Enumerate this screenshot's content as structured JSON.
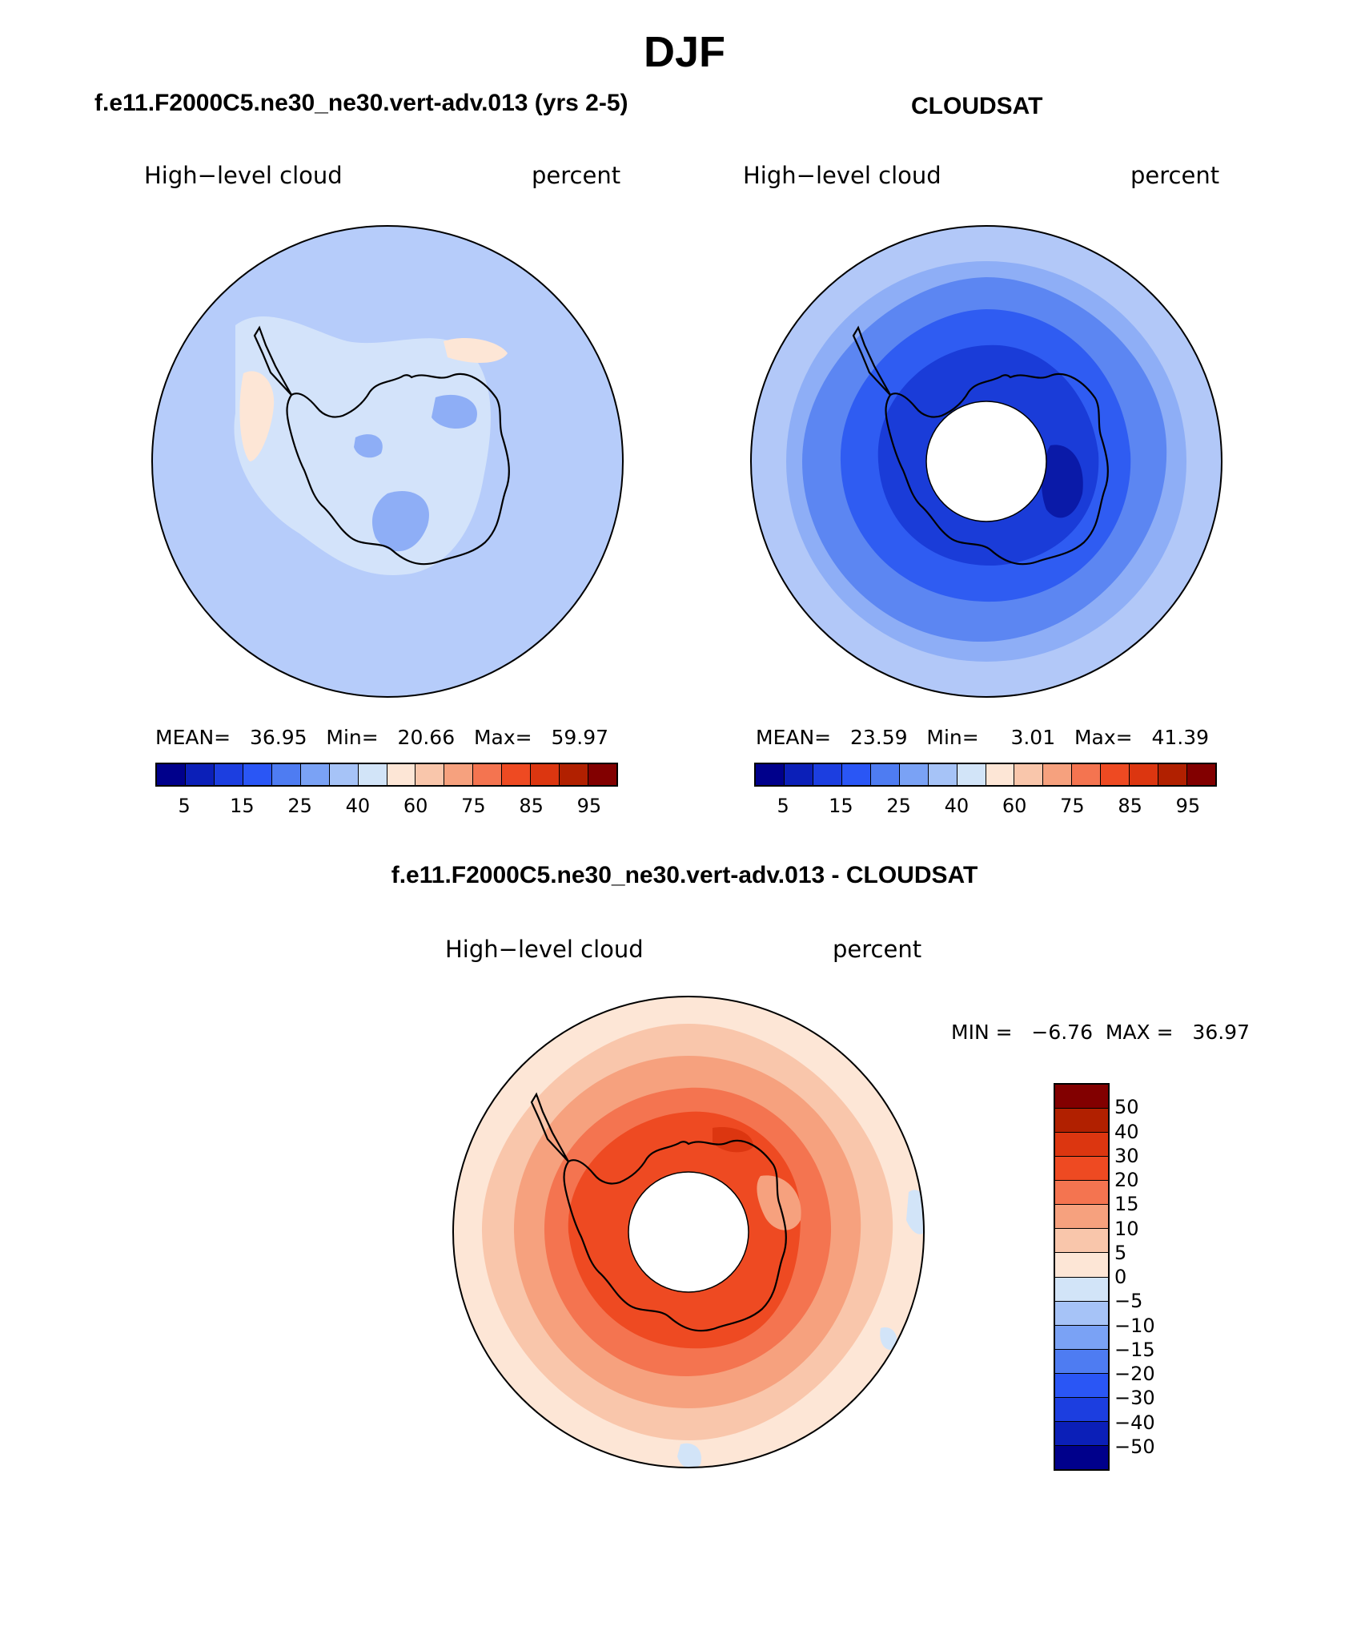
{
  "season": "DJF",
  "panels": {
    "model": {
      "title": "f.e11.F2000C5.ne30_ne30.vert-adv.013 (yrs 2-5)",
      "variable": "High−level cloud",
      "units": "percent",
      "stats": {
        "mean_label": "MEAN=",
        "mean": "36.95",
        "min_label": "Min=",
        "min": "20.66",
        "max_label": "Max=",
        "max": "59.97"
      }
    },
    "obs": {
      "title": "CLOUDSAT",
      "variable": "High−level cloud",
      "units": "percent",
      "stats": {
        "mean_label": "MEAN=",
        "mean": "23.59",
        "min_label": "Min=",
        "min": "3.01",
        "max_label": "Max=",
        "max": "41.39"
      }
    },
    "diff": {
      "title": "f.e11.F2000C5.ne30_ne30.vert-adv.013 - CLOUDSAT",
      "variable": "High−level cloud",
      "units": "percent",
      "minmax": "MIN =   −6.76  MAX =   36.97"
    }
  },
  "colorbar_main": {
    "colors": [
      "#00008b",
      "#0b1fb8",
      "#1c3ee0",
      "#2a56f5",
      "#4e7cf2",
      "#7aa2f5",
      "#a6c3f7",
      "#d2e4f8",
      "#fde6d6",
      "#f9c6ab",
      "#f6a17e",
      "#f47450",
      "#ee4a22",
      "#dc3610",
      "#b12000",
      "#820000"
    ],
    "tick_labels": [
      "5",
      "15",
      "25",
      "40",
      "60",
      "75",
      "85",
      "95"
    ]
  },
  "colorbar_diff": {
    "colors": [
      "#820000",
      "#b12000",
      "#dc3610",
      "#ee4a22",
      "#f47450",
      "#f6a17e",
      "#f9c6ab",
      "#fde6d6",
      "#d2e4f8",
      "#a6c3f7",
      "#7aa2f5",
      "#4e7cf2",
      "#2a56f5",
      "#1c3ee0",
      "#0b1fb8",
      "#00008b"
    ],
    "tick_labels": [
      "50",
      "40",
      "30",
      "20",
      "15",
      "10",
      "5",
      "0",
      "−5",
      "−10",
      "−15",
      "−20",
      "−30",
      "−40",
      "−50"
    ]
  },
  "map_colors": {
    "model_bg": "#b6ccfa",
    "model_light": "#d3e3fa",
    "model_mid": "#8eaef6",
    "model_warm": "#fde6d6",
    "obs_outer": "#b2c8f8",
    "obs_light": "#8eaef6",
    "obs_mid": "#5c86f2",
    "obs_blue": "#2f5cf2",
    "obs_deep": "#1a3cd8",
    "obs_darkest": "#0a1aa8",
    "diff_outer": "#fde6d6",
    "diff_light": "#f9c6ab",
    "diff_mid": "#f6a17e",
    "diff_strong": "#f47450",
    "diff_deep": "#ee4a22",
    "diff_darkest": "#dc3610",
    "diff_blue": "#d2e4f8"
  }
}
